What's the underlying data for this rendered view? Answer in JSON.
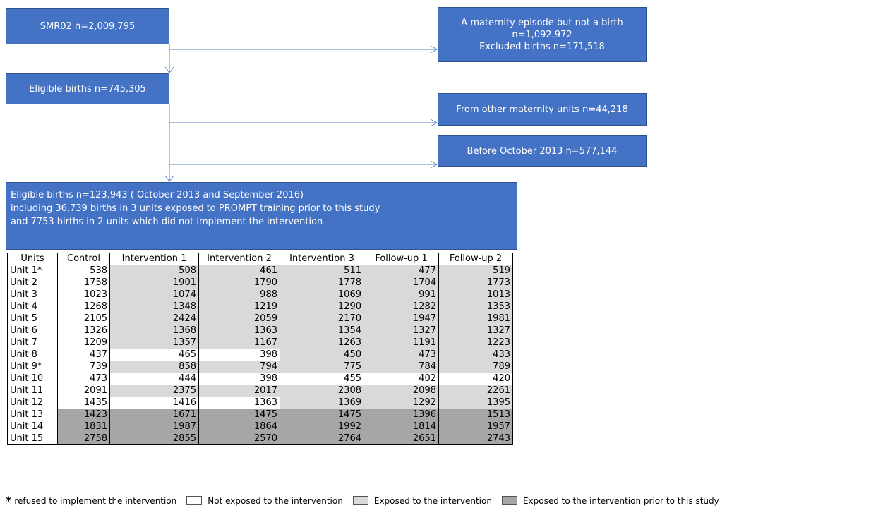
{
  "nodes": [
    {
      "lines": [
        "SMR02 n=2,009,795"
      ]
    },
    {
      "lines": [
        "A maternity episode but not a birth",
        "n=1,092,972",
        "Excluded births n=171,518"
      ]
    },
    {
      "lines": [
        "Eligible births n=745,305"
      ]
    },
    {
      "lines": [
        "From other maternity units n=44,218"
      ]
    },
    {
      "lines": [
        "Before October 2013 n=577,144"
      ]
    },
    {
      "lines": [
        "Eligible births n=123,943 ( October 2013 and September 2016)",
        "including 36,739 births in 3 units exposed to PROMPT training prior to this study",
        "and 7753 births in 2 units which did not implement the intervention"
      ]
    }
  ],
  "table": {
    "columns": [
      "Units",
      "Control",
      "Intervention 1",
      "Intervention 2",
      "Intervention 3",
      "Follow-up 1",
      "Follow-up 2"
    ],
    "rows": [
      {
        "cells": [
          "Unit 1*",
          538,
          508,
          461,
          511,
          477,
          519
        ],
        "fills": [
          "#ffffff",
          "#ffffff",
          "#d9d9d9",
          "#d9d9d9",
          "#d9d9d9",
          "#d9d9d9",
          "#d9d9d9"
        ]
      },
      {
        "cells": [
          "Unit 2",
          1758,
          1901,
          1790,
          1778,
          1704,
          1773
        ],
        "fills": [
          "#ffffff",
          "#ffffff",
          "#d9d9d9",
          "#d9d9d9",
          "#d9d9d9",
          "#d9d9d9",
          "#d9d9d9"
        ]
      },
      {
        "cells": [
          "Unit 3",
          1023,
          1074,
          988,
          1069,
          991,
          1013
        ],
        "fills": [
          "#ffffff",
          "#ffffff",
          "#d9d9d9",
          "#d9d9d9",
          "#d9d9d9",
          "#d9d9d9",
          "#d9d9d9"
        ]
      },
      {
        "cells": [
          "Unit 4",
          1268,
          1348,
          1219,
          1290,
          1282,
          1353
        ],
        "fills": [
          "#ffffff",
          "#ffffff",
          "#d9d9d9",
          "#d9d9d9",
          "#d9d9d9",
          "#d9d9d9",
          "#d9d9d9"
        ]
      },
      {
        "cells": [
          "Unit 5",
          2105,
          2424,
          2059,
          2170,
          1947,
          1981
        ],
        "fills": [
          "#ffffff",
          "#ffffff",
          "#d9d9d9",
          "#d9d9d9",
          "#d9d9d9",
          "#d9d9d9",
          "#d9d9d9"
        ]
      },
      {
        "cells": [
          "Unit 6",
          1326,
          1368,
          1363,
          1354,
          1327,
          1327
        ],
        "fills": [
          "#ffffff",
          "#ffffff",
          "#d9d9d9",
          "#d9d9d9",
          "#d9d9d9",
          "#d9d9d9",
          "#d9d9d9"
        ]
      },
      {
        "cells": [
          "Unit 7",
          1209,
          1357,
          1167,
          1263,
          1191,
          1223
        ],
        "fills": [
          "#ffffff",
          "#ffffff",
          "#d9d9d9",
          "#d9d9d9",
          "#d9d9d9",
          "#d9d9d9",
          "#d9d9d9"
        ]
      },
      {
        "cells": [
          "Unit 8",
          437,
          465,
          398,
          450,
          473,
          433
        ],
        "fills": [
          "#ffffff",
          "#ffffff",
          "#ffffff",
          "#ffffff",
          "#d9d9d9",
          "#d9d9d9",
          "#d9d9d9"
        ]
      },
      {
        "cells": [
          "Unit 9*",
          739,
          858,
          794,
          775,
          784,
          789
        ],
        "fills": [
          "#ffffff",
          "#ffffff",
          "#d9d9d9",
          "#d9d9d9",
          "#d9d9d9",
          "#d9d9d9",
          "#d9d9d9"
        ]
      },
      {
        "cells": [
          "Unit 10",
          473,
          444,
          398,
          455,
          402,
          420
        ],
        "fills": [
          "#ffffff",
          "#ffffff",
          "#ffffff",
          "#ffffff",
          "#ffffff",
          "#ffffff",
          "#ffffff"
        ]
      },
      {
        "cells": [
          "Unit 11",
          2091,
          2375,
          2017,
          2308,
          2098,
          2261
        ],
        "fills": [
          "#ffffff",
          "#ffffff",
          "#d9d9d9",
          "#d9d9d9",
          "#d9d9d9",
          "#d9d9d9",
          "#d9d9d9"
        ]
      },
      {
        "cells": [
          "Unit 12",
          1435,
          1416,
          1363,
          1369,
          1292,
          1395
        ],
        "fills": [
          "#ffffff",
          "#ffffff",
          "#ffffff",
          "#ffffff",
          "#d9d9d9",
          "#d9d9d9",
          "#d9d9d9"
        ]
      },
      {
        "cells": [
          "Unit 13",
          1423,
          1671,
          1475,
          1475,
          1396,
          1513
        ],
        "fills": [
          "#ffffff",
          "#a6a6a6",
          "#a6a6a6",
          "#a6a6a6",
          "#a6a6a6",
          "#a6a6a6",
          "#a6a6a6"
        ]
      },
      {
        "cells": [
          "Unit 14",
          1831,
          1987,
          1864,
          1992,
          1814,
          1957
        ],
        "fills": [
          "#ffffff",
          "#a6a6a6",
          "#a6a6a6",
          "#a6a6a6",
          "#a6a6a6",
          "#a6a6a6",
          "#a6a6a6"
        ]
      },
      {
        "cells": [
          "Unit 15",
          2758,
          2855,
          2570,
          2764,
          2651,
          2743
        ],
        "fills": [
          "#ffffff",
          "#a6a6a6",
          "#a6a6a6",
          "#a6a6a6",
          "#a6a6a6",
          "#a6a6a6",
          "#a6a6a6"
        ]
      }
    ]
  },
  "legend": {
    "marker": "*",
    "note": "refused to implement the intervention",
    "items": [
      {
        "label": "Not exposed to the intervention",
        "color": "#ffffff"
      },
      {
        "label": "Exposed to the intervention",
        "color": "#d9d9d9"
      },
      {
        "label": "Exposed to the intervention prior to this study",
        "color": "#a6a6a6"
      }
    ]
  }
}
